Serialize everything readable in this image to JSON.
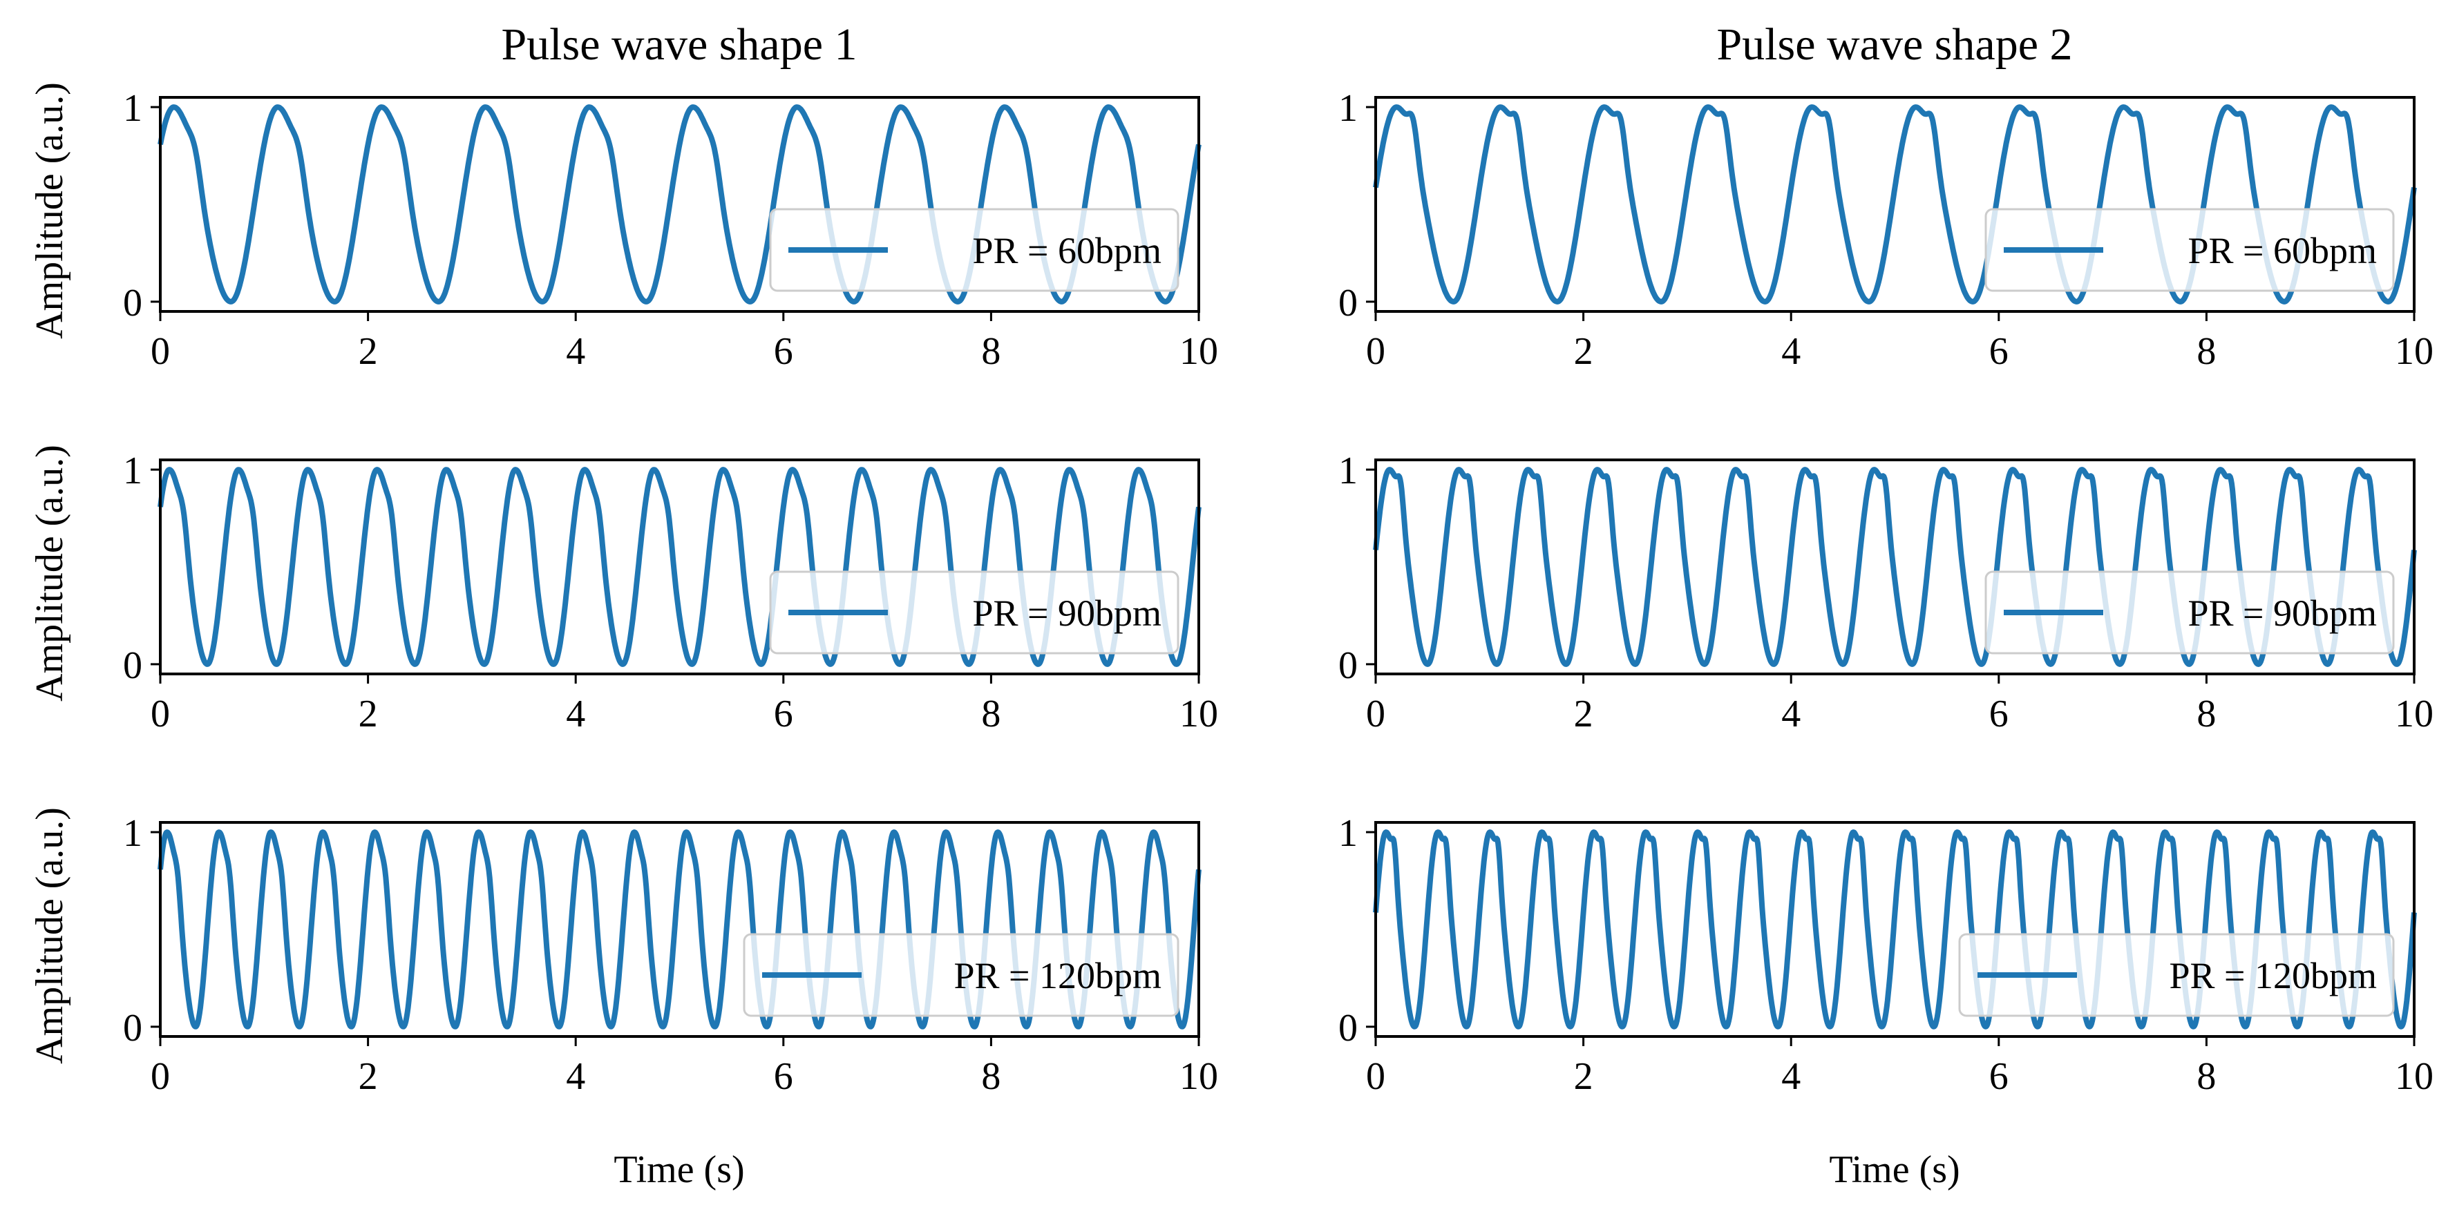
{
  "colors": {
    "line": "#1f77b4",
    "axes": "#000000",
    "legend_border": "#cccccc"
  },
  "columns": [
    {
      "title": "Pulse wave shape 1",
      "xlabel": "Time (s)"
    },
    {
      "title": "Pulse wave shape 2",
      "xlabel": "Time (s)"
    }
  ],
  "rows": [
    {
      "ylabel": "Amplitude (a.u.)"
    },
    {
      "ylabel": "Amplitude (a.u.)"
    },
    {
      "ylabel": "Amplitude (a.u.)"
    }
  ],
  "chart_data": [
    {
      "id": "s1-60",
      "type": "line",
      "column": 0,
      "row": 0,
      "shape": 1,
      "pulse_rate_bpm": 60,
      "title": "Pulse wave shape 1",
      "xlabel": "",
      "ylabel": "Amplitude (a.u.)",
      "xlim": [
        0,
        10
      ],
      "ylim": [
        -0.05,
        1.05
      ],
      "xticks": [
        0,
        2,
        4,
        6,
        8,
        10
      ],
      "yticks": [
        0,
        1
      ],
      "series": [
        {
          "name": "PR = 60bpm"
        }
      ],
      "legend": "lower-right",
      "grid": false
    },
    {
      "id": "s2-60",
      "type": "line",
      "column": 1,
      "row": 0,
      "shape": 2,
      "pulse_rate_bpm": 60,
      "title": "Pulse wave shape 2",
      "xlabel": "",
      "ylabel": "",
      "xlim": [
        0,
        10
      ],
      "ylim": [
        -0.05,
        1.05
      ],
      "xticks": [
        0,
        2,
        4,
        6,
        8,
        10
      ],
      "yticks": [
        0,
        1
      ],
      "series": [
        {
          "name": "PR = 60bpm"
        }
      ],
      "legend": "lower-right",
      "grid": false
    },
    {
      "id": "s1-90",
      "type": "line",
      "column": 0,
      "row": 1,
      "shape": 1,
      "pulse_rate_bpm": 90,
      "title": "",
      "xlabel": "",
      "ylabel": "Amplitude (a.u.)",
      "xlim": [
        0,
        10
      ],
      "ylim": [
        -0.05,
        1.05
      ],
      "xticks": [
        0,
        2,
        4,
        6,
        8,
        10
      ],
      "yticks": [
        0,
        1
      ],
      "series": [
        {
          "name": "PR = 90bpm"
        }
      ],
      "legend": "lower-right",
      "grid": false
    },
    {
      "id": "s2-90",
      "type": "line",
      "column": 1,
      "row": 1,
      "shape": 2,
      "pulse_rate_bpm": 90,
      "title": "",
      "xlabel": "",
      "ylabel": "",
      "xlim": [
        0,
        10
      ],
      "ylim": [
        -0.05,
        1.05
      ],
      "xticks": [
        0,
        2,
        4,
        6,
        8,
        10
      ],
      "yticks": [
        0,
        1
      ],
      "series": [
        {
          "name": "PR = 90bpm"
        }
      ],
      "legend": "lower-right",
      "grid": false
    },
    {
      "id": "s1-120",
      "type": "line",
      "column": 0,
      "row": 2,
      "shape": 1,
      "pulse_rate_bpm": 120,
      "title": "",
      "xlabel": "Time (s)",
      "ylabel": "Amplitude (a.u.)",
      "xlim": [
        0,
        10
      ],
      "ylim": [
        -0.05,
        1.05
      ],
      "xticks": [
        0,
        2,
        4,
        6,
        8,
        10
      ],
      "yticks": [
        0,
        1
      ],
      "series": [
        {
          "name": "PR = 120bpm"
        }
      ],
      "legend": "lower-right",
      "grid": false
    },
    {
      "id": "s2-120",
      "type": "line",
      "column": 1,
      "row": 2,
      "shape": 2,
      "pulse_rate_bpm": 120,
      "title": "",
      "xlabel": "Time (s)",
      "ylabel": "",
      "xlim": [
        0,
        10
      ],
      "ylim": [
        -0.05,
        1.05
      ],
      "xticks": [
        0,
        2,
        4,
        6,
        8,
        10
      ],
      "yticks": [
        0,
        1
      ],
      "series": [
        {
          "name": "PR = 120bpm"
        }
      ],
      "legend": "lower-right",
      "grid": false
    }
  ]
}
